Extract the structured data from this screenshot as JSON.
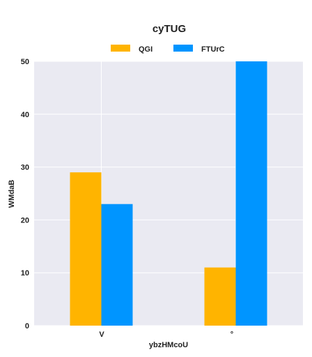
{
  "chart_data": {
    "type": "bar",
    "title": "cyTUG",
    "xlabel": "ybzHMcoU",
    "ylabel": "WMdaB",
    "categories": [
      "V",
      "°"
    ],
    "series": [
      {
        "name": "QGI",
        "values": [
          29,
          11
        ],
        "color": "#FFB400"
      },
      {
        "name": "FTUrC",
        "values": [
          23,
          50
        ],
        "color": "#0095FF"
      }
    ],
    "ylim": [
      0,
      50
    ],
    "yticks": [
      0,
      10,
      20,
      30,
      40,
      50
    ],
    "grid": true,
    "legend_position": "top-center",
    "background_color": "#EAEAF2",
    "grid_color": "#FFFFFF"
  }
}
